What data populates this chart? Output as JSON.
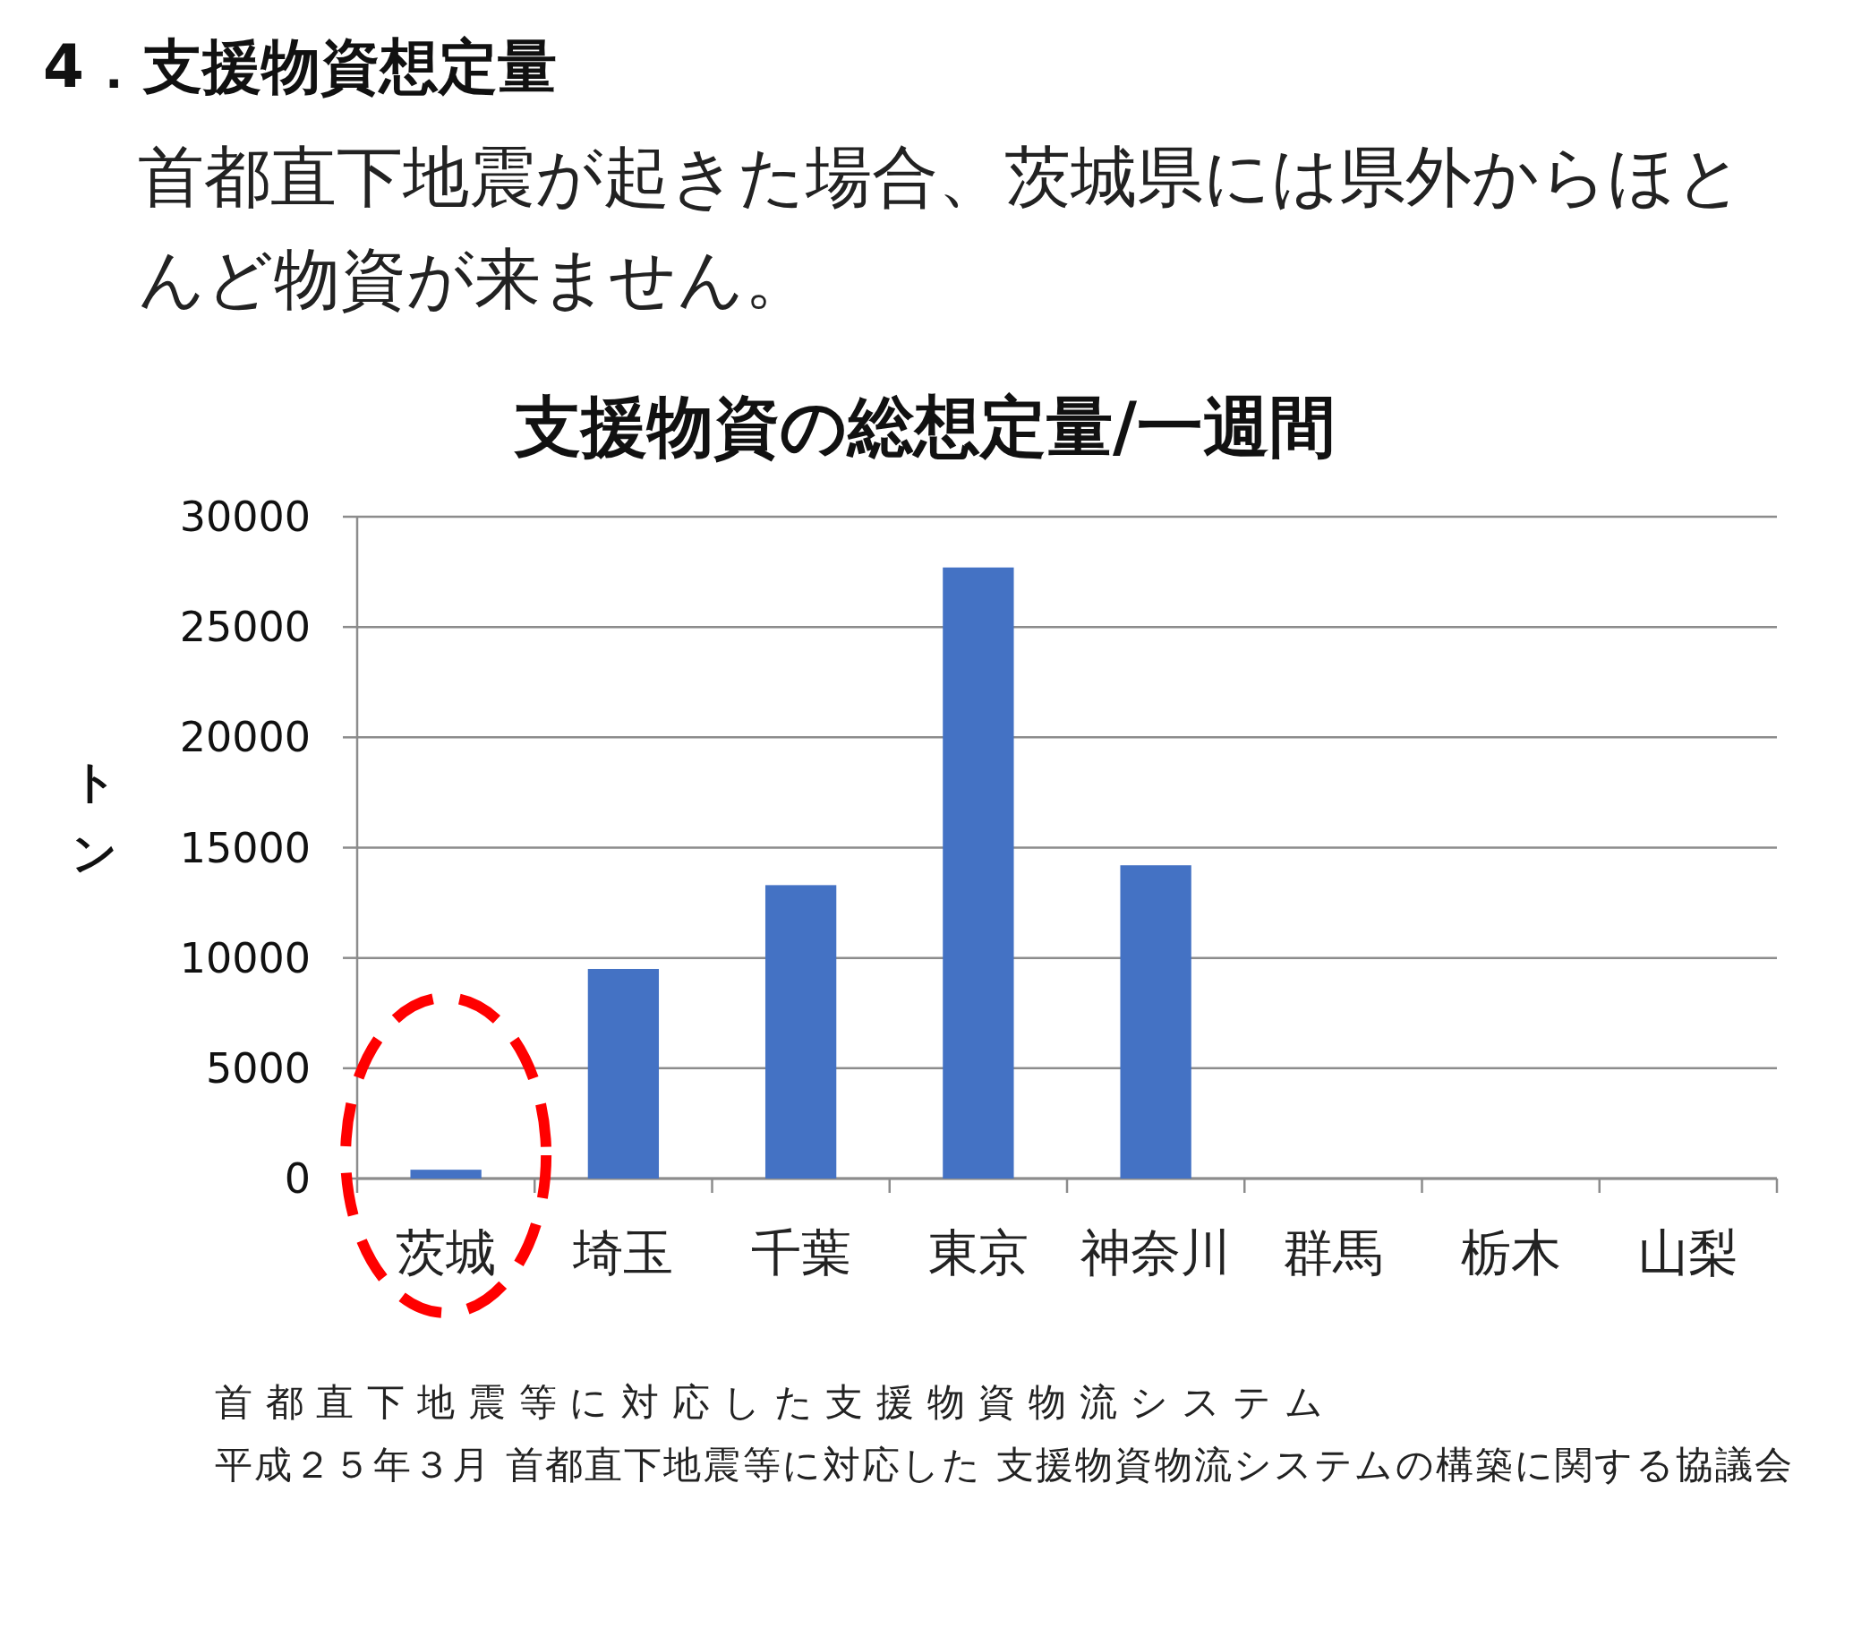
{
  "chart_data": {
    "type": "bar",
    "title": "支援物資の総想定量/一週間",
    "subtitle": "首都直下地震が起きた場合、茨城県には県外からほとんど物資が来ません。",
    "ylabel": "トン",
    "categories": [
      "茨城",
      "埼玉",
      "千葉",
      "東京",
      "神奈川",
      "群馬",
      "栃木",
      "山梨"
    ],
    "values": [
      400,
      9500,
      13300,
      27700,
      14200,
      0,
      0,
      0
    ],
    "color": "#4472c4",
    "ylim": [
      0,
      30000
    ],
    "yticks": [
      0,
      5000,
      10000,
      15000,
      20000,
      25000,
      30000
    ],
    "grid": "y",
    "annotations": [
      "4．支援物資想定量",
      "首都直下地震等に対応した支援物資物流システム",
      "平成２５年３月 首都直下地震等に対応した 支援物資物流システムの構築に関する協議会"
    ]
  }
}
